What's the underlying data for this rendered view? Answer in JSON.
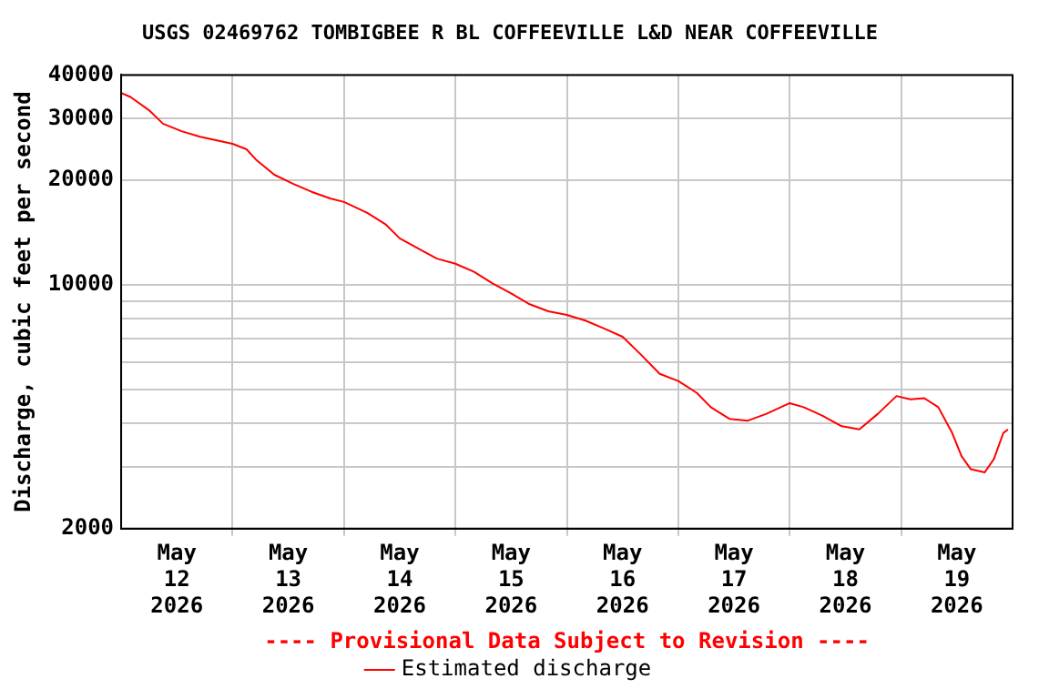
{
  "chart_data": {
    "type": "line",
    "title": "USGS 02469762 TOMBIGBEE R BL COFFEEVILLE L&D NEAR COFFEEVILLE",
    "ylabel": "Discharge, cubic feet per second",
    "annotations": [
      "---- Provisional Data Subject to Revision ----"
    ],
    "x": [
      "2026-05-12T00:00",
      "2026-05-12T02:00",
      "2026-05-12T06:00",
      "2026-05-12T09:00",
      "2026-05-12T13:00",
      "2026-05-12T17:00",
      "2026-05-13T00:00",
      "2026-05-13T03:00",
      "2026-05-13T05:00",
      "2026-05-13T09:00",
      "2026-05-13T13:00",
      "2026-05-13T17:00",
      "2026-05-13T21:00",
      "2026-05-14T00:00",
      "2026-05-14T05:00",
      "2026-05-14T09:00",
      "2026-05-14T12:00",
      "2026-05-14T17:00",
      "2026-05-14T20:00",
      "2026-05-15T00:00",
      "2026-05-15T04:00",
      "2026-05-15T08:00",
      "2026-05-15T12:00",
      "2026-05-15T16:00",
      "2026-05-15T20:00",
      "2026-05-16T00:00",
      "2026-05-16T04:00",
      "2026-05-16T08:00",
      "2026-05-16T12:00",
      "2026-05-16T16:00",
      "2026-05-16T20:00",
      "2026-05-17T00:00",
      "2026-05-17T04:00",
      "2026-05-17T07:00",
      "2026-05-17T11:00",
      "2026-05-17T15:00",
      "2026-05-17T19:00",
      "2026-05-18T00:00",
      "2026-05-18T03:00",
      "2026-05-18T07:00",
      "2026-05-18T11:00",
      "2026-05-18T15:00",
      "2026-05-18T19:00",
      "2026-05-18T23:00",
      "2026-05-19T02:00",
      "2026-05-19T05:00",
      "2026-05-19T08:00",
      "2026-05-19T11:00",
      "2026-05-19T13:00",
      "2026-05-19T15:00",
      "2026-05-19T18:00",
      "2026-05-19T20:00",
      "2026-05-19T22:00",
      "2026-05-19T23:00"
    ],
    "series": [
      {
        "name": "Estimated discharge",
        "color": "#ff0000",
        "values": [
          35500,
          34600,
          31700,
          29000,
          27600,
          26600,
          25400,
          24500,
          22900,
          20700,
          19500,
          18500,
          17700,
          17300,
          16100,
          14900,
          13600,
          12500,
          11900,
          11500,
          10900,
          10100,
          9450,
          8800,
          8400,
          8200,
          7900,
          7500,
          7100,
          6300,
          5560,
          5300,
          4900,
          4460,
          4130,
          4080,
          4270,
          4580,
          4460,
          4220,
          3940,
          3850,
          4270,
          4800,
          4700,
          4730,
          4460,
          3760,
          3230,
          2960,
          2900,
          3170,
          3760,
          3850
        ]
      }
    ],
    "log": "y",
    "ylim": [
      2000,
      40000
    ],
    "yticks": [
      2000,
      {
        "value": 3000,
        "label": null
      },
      {
        "value": 4000,
        "label": null
      },
      {
        "value": 5000,
        "label": null
      },
      {
        "value": 6000,
        "label": null
      },
      {
        "value": 7000,
        "label": null
      },
      {
        "value": 8000,
        "label": null
      },
      {
        "value": 9000,
        "label": null
      },
      10000,
      20000,
      30000,
      40000
    ],
    "xlim": [
      "2026-05-12",
      "2026-05-20"
    ],
    "xticks": [
      {
        "value": "2026-05-12T12:00",
        "label": "May 12 2026"
      },
      {
        "value": "2026-05-13",
        "label": null
      },
      {
        "value": "2026-05-13T12:00",
        "label": "May 13 2026"
      },
      {
        "value": "2026-05-14",
        "label": null
      },
      {
        "value": "2026-05-14T12:00",
        "label": "May 14 2026"
      },
      {
        "value": "2026-05-15",
        "label": null
      },
      {
        "value": "2026-05-15T12:00",
        "label": "May 15 2026"
      },
      {
        "value": "2026-05-16",
        "label": null
      },
      {
        "value": "2026-05-16T12:00",
        "label": "May 16 2026"
      },
      {
        "value": "2026-05-17",
        "label": null
      },
      {
        "value": "2026-05-17T12:00",
        "label": "May 17 2026"
      },
      {
        "value": "2026-05-18",
        "label": null
      },
      {
        "value": "2026-05-18T12:00",
        "label": "May 18 2026"
      },
      {
        "value": "2026-05-19",
        "label": null
      },
      {
        "value": "2026-05-19T12:00",
        "label": "May 19 2026"
      }
    ],
    "grid": true,
    "legend": "bottom",
    "marker": "none",
    "line_style": "solid"
  }
}
